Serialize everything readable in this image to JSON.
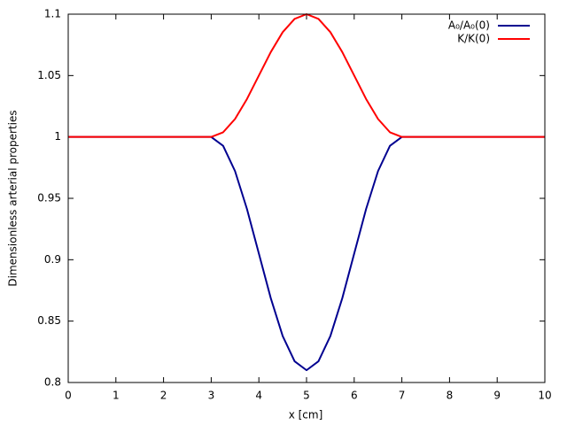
{
  "chart_data": {
    "type": "line",
    "xlabel": "x [cm]",
    "ylabel": "Dimensionless arterial properties",
    "x": [
      0,
      1,
      2,
      3,
      3.25,
      3.5,
      3.75,
      4,
      4.25,
      4.5,
      4.75,
      5,
      5.25,
      5.5,
      5.75,
      6,
      6.25,
      6.5,
      6.75,
      7,
      8,
      9,
      10
    ],
    "series": [
      {
        "name": "A₀/A₀(0)",
        "color": "#000090",
        "values": [
          1,
          1,
          1,
          1,
          0.99277,
          0.97217,
          0.94135,
          0.905,
          0.86865,
          0.83783,
          0.81723,
          0.81,
          0.81723,
          0.83783,
          0.86865,
          0.905,
          0.94135,
          0.97217,
          0.99277,
          1,
          1,
          1,
          1
        ]
      },
      {
        "name": "K/K(0)",
        "color": "#ff0000",
        "values": [
          1,
          1,
          1,
          1,
          1.00381,
          1.01464,
          1.03087,
          1.05,
          1.06913,
          1.08536,
          1.09619,
          1.1,
          1.09619,
          1.08536,
          1.06913,
          1.05,
          1.03087,
          1.01464,
          1.00381,
          1,
          1,
          1,
          1
        ]
      }
    ],
    "xlim": [
      0,
      10
    ],
    "xticks": [
      0,
      1,
      2,
      3,
      4,
      5,
      6,
      7,
      8,
      9,
      10
    ],
    "ylim": [
      0.8,
      1.1
    ],
    "yticks": [
      0.8,
      0.85,
      0.9,
      0.95,
      1,
      1.05,
      1.1
    ],
    "grid": false,
    "legend": "top-right"
  }
}
